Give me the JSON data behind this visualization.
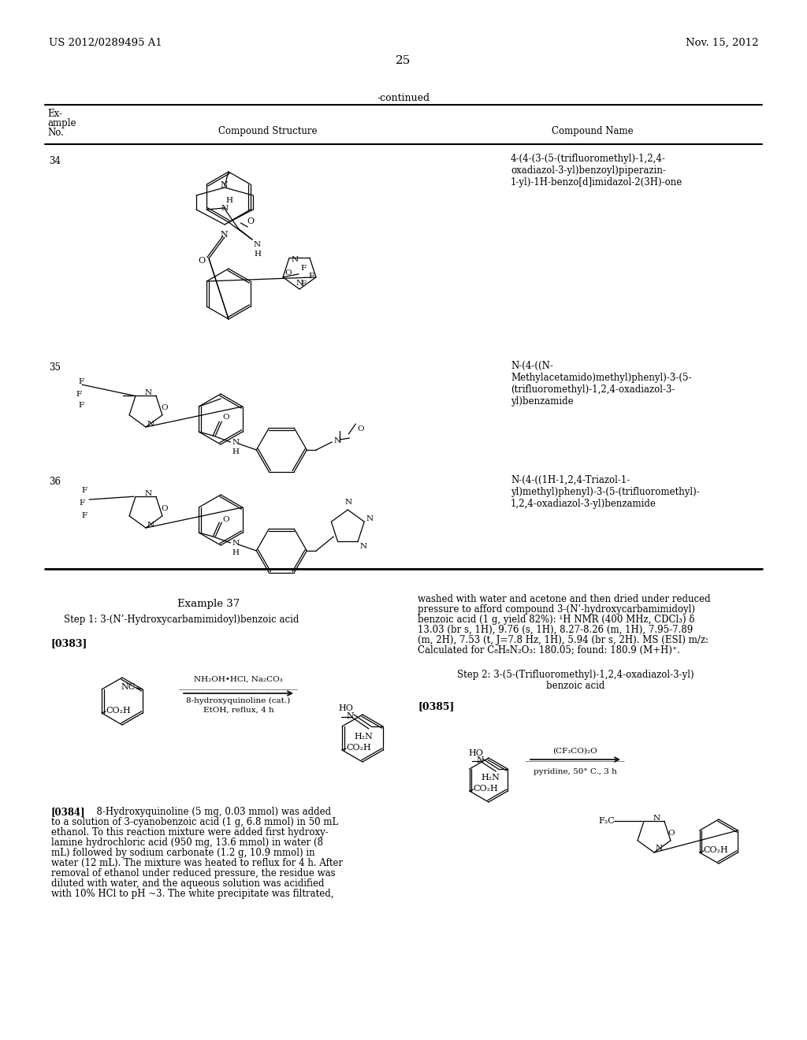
{
  "page_header_left": "US 2012/0289495 A1",
  "page_header_right": "Nov. 15, 2012",
  "page_number": "25",
  "table_header": "-continued",
  "compound_names": [
    "4-(4-(3-(5-(trifluoromethyl)-1,2,4-\noxadiazol-3-yl)benzoyl)piperazin-\n1-yl)-1H-benzo[d]imidazol-2(3H)-one",
    "N-(4-((N-\nMethylacetamido)methyl)phenyl)-3-(5-\n(trifluoromethyl)-1,2,4-oxadiazol-3-\nyl)benzamide",
    "N-(4-((1H-1,2,4-Triazol-1-\nyl)methyl)phenyl)-3-(5-(trifluoromethyl)-\n1,2,4-oxadiazol-3-yl)benzamide"
  ],
  "right_text_lines": [
    "washed with water and acetone and then dried under reduced",
    "pressure to afford compound 3-(N’-hydroxycarbamimidoyl)",
    "benzoic acid (1 g, yield 82%): ¹H NMR (400 MHz, CDCl₃) δ",
    "13.03 (br s, 1H), 9.76 (s, 1H), 8.27-8.26 (m, 1H), 7.95-7.89",
    "(m, 2H), 7.53 (t, J=7.8 Hz, 1H), 5.94 (br s, 2H). MS (ESI) m/z:",
    "Calculated for C₈H₈N₂O₃: 180.05; found: 180.9 (M+H)⁺."
  ],
  "left_text_lines": [
    "[0384]  8-Hydroxyquinoline (5 mg, 0.03 mmol) was added",
    "to a solution of 3-cyanobenzoic acid (1 g, 6.8 mmol) in 50 mL",
    "ethanol. To this reaction mixture were added first hydroxy-",
    "lamine hydrochloric acid (950 mg, 13.6 mmol) in water (8",
    "mL) followed by sodium carbonate (1.2 g, 10.9 mmol) in",
    "water (12 mL). The mixture was heated to reflux for 4 h. After",
    "removal of ethanol under reduced pressure, the residue was",
    "diluted with water, and the aqueous solution was acidified",
    "with 10% HCl to pH ~3. The white precipitate was filtrated,"
  ],
  "background_color": "#ffffff"
}
